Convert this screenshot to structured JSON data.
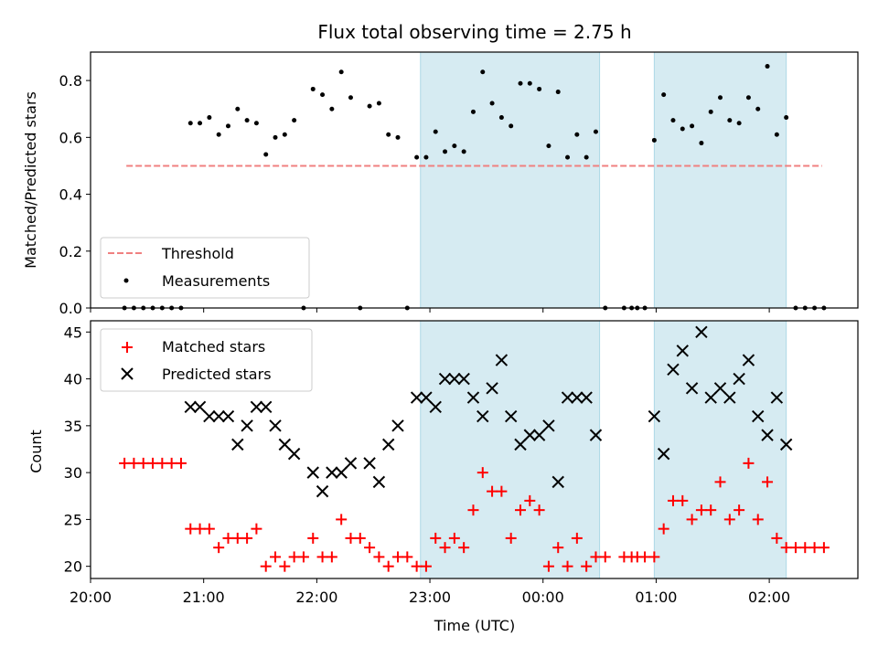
{
  "figure": {
    "title": "Flux total observing time = 2.75 h",
    "xlabel": "Time (UTC)",
    "colors": {
      "band": "#add8e6",
      "threshold": "#f08080",
      "matched": "#ff0000",
      "predicted": "#000000",
      "measurements": "#000000"
    }
  },
  "chart_data": [
    {
      "type": "scatter",
      "panel": "top",
      "ylabel": "Matched/Predicted stars",
      "xlim": [
        "20:00",
        "02:47"
      ],
      "ylim": [
        0,
        0.9
      ],
      "yticks": [
        0.0,
        0.2,
        0.4,
        0.6,
        0.8
      ],
      "ytick_labels": [
        "0.0",
        "0.2",
        "0.4",
        "0.6",
        "0.8"
      ],
      "shaded_intervals": [
        [
          "22:55",
          "00:30"
        ],
        [
          "00:59",
          "02:09"
        ]
      ],
      "threshold": {
        "name": "Threshold",
        "y": 0.5,
        "x_range": [
          "20:19",
          "02:28"
        ]
      },
      "legend": {
        "position": "lower-left",
        "entries": [
          "Threshold",
          "Measurements"
        ]
      },
      "series": [
        {
          "name": "Measurements",
          "points": [
            [
              "20:18",
              0
            ],
            [
              "20:23",
              0
            ],
            [
              "20:28",
              0
            ],
            [
              "20:33",
              0
            ],
            [
              "20:38",
              0
            ],
            [
              "20:43",
              0
            ],
            [
              "20:48",
              0
            ],
            [
              "20:53",
              0.65
            ],
            [
              "20:58",
              0.65
            ],
            [
              "21:03",
              0.67
            ],
            [
              "21:08",
              0.61
            ],
            [
              "21:13",
              0.64
            ],
            [
              "21:18",
              0.7
            ],
            [
              "21:23",
              0.66
            ],
            [
              "21:28",
              0.65
            ],
            [
              "21:33",
              0.54
            ],
            [
              "21:38",
              0.6
            ],
            [
              "21:43",
              0.61
            ],
            [
              "21:48",
              0.66
            ],
            [
              "21:53",
              0
            ],
            [
              "21:58",
              0.77
            ],
            [
              "22:03",
              0.75
            ],
            [
              "22:08",
              0.7
            ],
            [
              "22:13",
              0.83
            ],
            [
              "22:18",
              0.74
            ],
            [
              "22:23",
              0
            ],
            [
              "22:28",
              0.71
            ],
            [
              "22:33",
              0.72
            ],
            [
              "22:38",
              0.61
            ],
            [
              "22:43",
              0.6
            ],
            [
              "22:48",
              0
            ],
            [
              "22:53",
              0.53
            ],
            [
              "22:58",
              0.53
            ],
            [
              "23:03",
              0.62
            ],
            [
              "23:08",
              0.55
            ],
            [
              "23:13",
              0.57
            ],
            [
              "23:18",
              0.55
            ],
            [
              "23:23",
              0.69
            ],
            [
              "23:28",
              0.83
            ],
            [
              "23:33",
              0.72
            ],
            [
              "23:38",
              0.67
            ],
            [
              "23:43",
              0.64
            ],
            [
              "23:48",
              0.79
            ],
            [
              "23:53",
              0.79
            ],
            [
              "23:58",
              0.77
            ],
            [
              "00:03",
              0.57
            ],
            [
              "00:08",
              0.76
            ],
            [
              "00:13",
              0.53
            ],
            [
              "00:18",
              0.61
            ],
            [
              "00:23",
              0.53
            ],
            [
              "00:28",
              0.62
            ],
            [
              "00:33",
              0
            ],
            [
              "00:43",
              0
            ],
            [
              "00:47",
              0
            ],
            [
              "00:50",
              0
            ],
            [
              "00:54",
              0
            ],
            [
              "00:59",
              0.59
            ],
            [
              "01:04",
              0.75
            ],
            [
              "01:09",
              0.66
            ],
            [
              "01:14",
              0.63
            ],
            [
              "01:19",
              0.64
            ],
            [
              "01:24",
              0.58
            ],
            [
              "01:29",
              0.69
            ],
            [
              "01:34",
              0.74
            ],
            [
              "01:39",
              0.66
            ],
            [
              "01:44",
              0.65
            ],
            [
              "01:49",
              0.74
            ],
            [
              "01:54",
              0.7
            ],
            [
              "01:59",
              0.85
            ],
            [
              "02:04",
              0.61
            ],
            [
              "02:09",
              0.67
            ],
            [
              "02:14",
              0
            ],
            [
              "02:19",
              0
            ],
            [
              "02:24",
              0
            ],
            [
              "02:29",
              0
            ]
          ]
        }
      ]
    },
    {
      "type": "scatter",
      "panel": "bottom",
      "ylabel": "Count",
      "xlim": [
        "20:00",
        "02:47"
      ],
      "ylim": [
        18.7,
        46.2
      ],
      "yticks": [
        20,
        25,
        30,
        35,
        40,
        45
      ],
      "ytick_labels": [
        "20",
        "25",
        "30",
        "35",
        "40",
        "45"
      ],
      "xticks": [
        "20:00",
        "21:00",
        "22:00",
        "23:00",
        "00:00",
        "01:00",
        "02:00"
      ],
      "xtick_labels": [
        "20:00",
        "21:00",
        "22:00",
        "23:00",
        "00:00",
        "01:00",
        "02:00"
      ],
      "shaded_intervals": [
        [
          "22:55",
          "00:30"
        ],
        [
          "00:59",
          "02:09"
        ]
      ],
      "legend": {
        "position": "upper-left",
        "entries": [
          "Matched stars",
          "Predicted stars"
        ]
      },
      "series": [
        {
          "name": "Matched stars",
          "marker": "+",
          "points": [
            [
              "20:18",
              31
            ],
            [
              "20:23",
              31
            ],
            [
              "20:28",
              31
            ],
            [
              "20:33",
              31
            ],
            [
              "20:38",
              31
            ],
            [
              "20:43",
              31
            ],
            [
              "20:48",
              31
            ],
            [
              "20:53",
              24
            ],
            [
              "20:58",
              24
            ],
            [
              "21:03",
              24
            ],
            [
              "21:08",
              22
            ],
            [
              "21:13",
              23
            ],
            [
              "21:18",
              23
            ],
            [
              "21:23",
              23
            ],
            [
              "21:28",
              24
            ],
            [
              "21:33",
              20
            ],
            [
              "21:38",
              21
            ],
            [
              "21:43",
              20
            ],
            [
              "21:48",
              21
            ],
            [
              "21:53",
              21
            ],
            [
              "21:58",
              23
            ],
            [
              "22:03",
              21
            ],
            [
              "22:08",
              21
            ],
            [
              "22:13",
              25
            ],
            [
              "22:18",
              23
            ],
            [
              "22:23",
              23
            ],
            [
              "22:28",
              22
            ],
            [
              "22:33",
              21
            ],
            [
              "22:38",
              20
            ],
            [
              "22:43",
              21
            ],
            [
              "22:48",
              21
            ],
            [
              "22:53",
              20
            ],
            [
              "22:58",
              20
            ],
            [
              "23:03",
              23
            ],
            [
              "23:08",
              22
            ],
            [
              "23:13",
              23
            ],
            [
              "23:18",
              22
            ],
            [
              "23:23",
              26
            ],
            [
              "23:28",
              30
            ],
            [
              "23:33",
              28
            ],
            [
              "23:38",
              28
            ],
            [
              "23:43",
              23
            ],
            [
              "23:48",
              26
            ],
            [
              "23:53",
              27
            ],
            [
              "23:58",
              26
            ],
            [
              "00:03",
              20
            ],
            [
              "00:08",
              22
            ],
            [
              "00:13",
              20
            ],
            [
              "00:18",
              23
            ],
            [
              "00:23",
              20
            ],
            [
              "00:28",
              21
            ],
            [
              "00:33",
              21
            ],
            [
              "00:43",
              21
            ],
            [
              "00:47",
              21
            ],
            [
              "00:50",
              21
            ],
            [
              "00:54",
              21
            ],
            [
              "00:59",
              21
            ],
            [
              "01:04",
              24
            ],
            [
              "01:09",
              27
            ],
            [
              "01:14",
              27
            ],
            [
              "01:19",
              25
            ],
            [
              "01:24",
              26
            ],
            [
              "01:29",
              26
            ],
            [
              "01:34",
              29
            ],
            [
              "01:39",
              25
            ],
            [
              "01:44",
              26
            ],
            [
              "01:49",
              31
            ],
            [
              "01:54",
              25
            ],
            [
              "01:59",
              29
            ],
            [
              "02:04",
              23
            ],
            [
              "02:09",
              22
            ],
            [
              "02:14",
              22
            ],
            [
              "02:19",
              22
            ],
            [
              "02:24",
              22
            ],
            [
              "02:29",
              22
            ]
          ]
        },
        {
          "name": "Predicted stars",
          "marker": "x",
          "points": [
            [
              "20:53",
              37
            ],
            [
              "20:58",
              37
            ],
            [
              "21:03",
              36
            ],
            [
              "21:08",
              36
            ],
            [
              "21:13",
              36
            ],
            [
              "21:18",
              33
            ],
            [
              "21:23",
              35
            ],
            [
              "21:28",
              37
            ],
            [
              "21:33",
              37
            ],
            [
              "21:38",
              35
            ],
            [
              "21:43",
              33
            ],
            [
              "21:48",
              32
            ],
            [
              "21:58",
              30
            ],
            [
              "22:03",
              28
            ],
            [
              "22:08",
              30
            ],
            [
              "22:13",
              30
            ],
            [
              "22:18",
              31
            ],
            [
              "22:28",
              31
            ],
            [
              "22:33",
              29
            ],
            [
              "22:38",
              33
            ],
            [
              "22:43",
              35
            ],
            [
              "22:53",
              38
            ],
            [
              "22:58",
              38
            ],
            [
              "23:03",
              37
            ],
            [
              "23:08",
              40
            ],
            [
              "23:13",
              40
            ],
            [
              "23:18",
              40
            ],
            [
              "23:23",
              38
            ],
            [
              "23:28",
              36
            ],
            [
              "23:33",
              39
            ],
            [
              "23:38",
              42
            ],
            [
              "23:43",
              36
            ],
            [
              "23:48",
              33
            ],
            [
              "23:53",
              34
            ],
            [
              "23:58",
              34
            ],
            [
              "00:03",
              35
            ],
            [
              "00:08",
              29
            ],
            [
              "00:13",
              38
            ],
            [
              "00:18",
              38
            ],
            [
              "00:23",
              38
            ],
            [
              "00:28",
              34
            ],
            [
              "00:59",
              36
            ],
            [
              "01:04",
              32
            ],
            [
              "01:09",
              41
            ],
            [
              "01:14",
              43
            ],
            [
              "01:19",
              39
            ],
            [
              "01:24",
              45
            ],
            [
              "01:29",
              38
            ],
            [
              "01:34",
              39
            ],
            [
              "01:39",
              38
            ],
            [
              "01:44",
              40
            ],
            [
              "01:49",
              42
            ],
            [
              "01:54",
              36
            ],
            [
              "01:59",
              34
            ],
            [
              "02:04",
              38
            ],
            [
              "02:09",
              33
            ]
          ]
        }
      ]
    }
  ]
}
